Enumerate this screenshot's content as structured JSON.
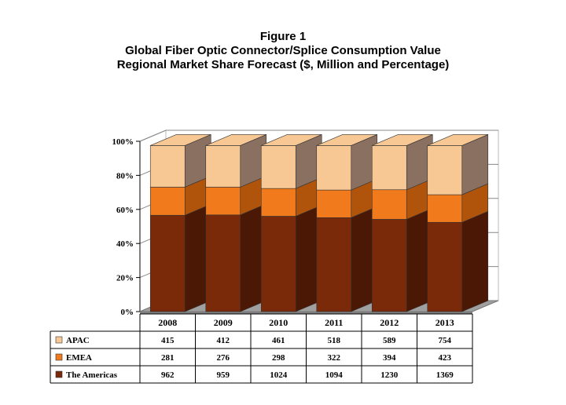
{
  "title_lines": [
    "Figure 1",
    "Global Fiber Optic Connector/Splice Consumption Value",
    "Regional Market Share Forecast ($, Million and Percentage)"
  ],
  "chart_data": {
    "type": "bar",
    "stacked": "percent",
    "categories": [
      "2008",
      "2009",
      "2010",
      "2011",
      "2012",
      "2013"
    ],
    "series": [
      {
        "name": "The Americas",
        "values": [
          962,
          959,
          1024,
          1094,
          1230,
          1369
        ],
        "color": "#7a2a08",
        "dark": "#4a1804"
      },
      {
        "name": "EMEA",
        "values": [
          281,
          276,
          298,
          322,
          394,
          423
        ],
        "color": "#f07a1c",
        "dark": "#b0540c"
      },
      {
        "name": "APAC",
        "values": [
          415,
          412,
          461,
          518,
          589,
          754
        ],
        "color": "#f8c894",
        "dark": "#8a7060"
      }
    ],
    "table_order": [
      "APAC",
      "EMEA",
      "The Americas"
    ],
    "yticks": [
      "0%",
      "20%",
      "40%",
      "60%",
      "80%",
      "100%"
    ],
    "ylim": [
      0,
      100
    ],
    "grid": true,
    "legend": "data table rows"
  }
}
